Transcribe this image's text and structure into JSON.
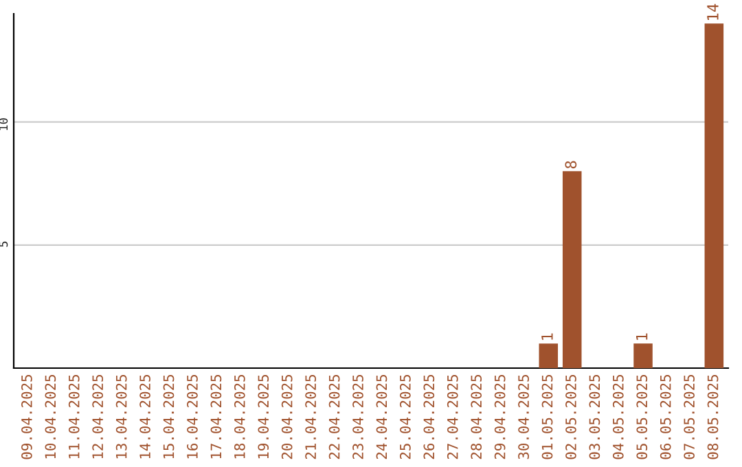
{
  "chart_data": {
    "type": "bar",
    "categories": [
      "09.04.2025",
      "10.04.2025",
      "11.04.2025",
      "12.04.2025",
      "13.04.2025",
      "14.04.2025",
      "15.04.2025",
      "16.04.2025",
      "17.04.2025",
      "18.04.2025",
      "19.04.2025",
      "20.04.2025",
      "21.04.2025",
      "22.04.2025",
      "23.04.2025",
      "24.04.2025",
      "25.04.2025",
      "26.04.2025",
      "27.04.2025",
      "28.04.2025",
      "29.04.2025",
      "30.04.2025",
      "01.05.2025",
      "02.05.2025",
      "03.05.2025",
      "04.05.2025",
      "05.05.2025",
      "06.05.2025",
      "07.05.2025",
      "08.05.2025"
    ],
    "values": [
      0,
      0,
      0,
      0,
      0,
      0,
      0,
      0,
      0,
      0,
      0,
      0,
      0,
      0,
      0,
      0,
      0,
      0,
      0,
      0,
      0,
      0,
      1,
      8,
      0,
      0,
      1,
      0,
      0,
      14
    ],
    "value_labels": [
      null,
      null,
      null,
      null,
      null,
      null,
      null,
      null,
      null,
      null,
      null,
      null,
      null,
      null,
      null,
      null,
      null,
      null,
      null,
      null,
      null,
      null,
      "1",
      "8",
      null,
      null,
      "1",
      null,
      null,
      "14"
    ],
    "color": "#a0522d",
    "ylim": [
      0,
      14.4
    ],
    "yticks": [
      5,
      10
    ],
    "grid": "y"
  }
}
